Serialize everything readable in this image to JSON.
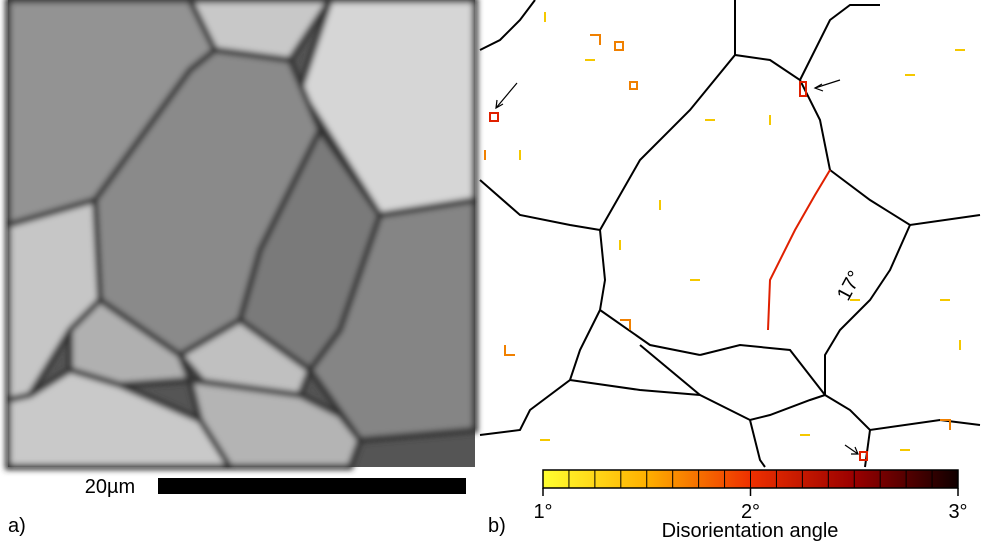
{
  "panel_a": {
    "label": "a)",
    "scale_bar": "20µm"
  },
  "panel_b": {
    "label": "b)",
    "annotation": "17°",
    "colorbar": {
      "title": "Disorientation angle",
      "lim": [
        1,
        3
      ],
      "ticks": [
        {
          "value": 1,
          "label": "1°"
        },
        {
          "value": 2,
          "label": "2°"
        },
        {
          "value": 3,
          "label": "3°"
        }
      ]
    }
  }
}
